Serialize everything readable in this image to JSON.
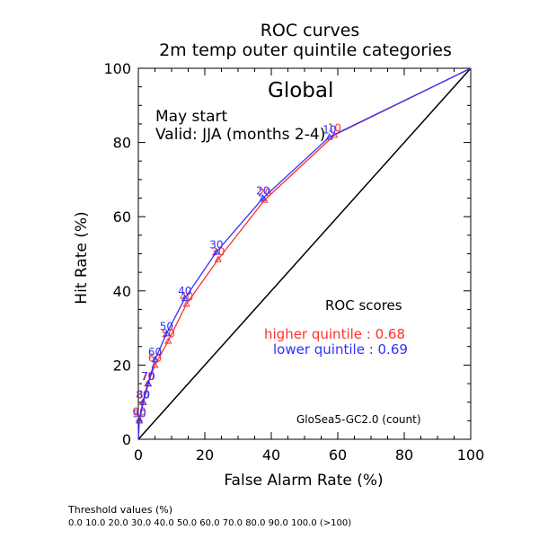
{
  "chart_data": {
    "type": "line",
    "title": "ROC curves",
    "subtitle": "2m temp outer quintile categories",
    "xlabel": "False Alarm Rate (%)",
    "ylabel": "Hit Rate (%)",
    "xlim": [
      0,
      100
    ],
    "ylim": [
      0,
      100
    ],
    "xticks": [
      "0",
      "20",
      "40",
      "60",
      "80",
      "100"
    ],
    "yticks": [
      "0",
      "20",
      "40",
      "60",
      "80",
      "100"
    ],
    "region": "Global",
    "start_text": "May start",
    "valid_text": "Valid: JJA (months 2-4)",
    "scores_heading": "ROC scores",
    "model_label": "GloSea5-GC2.0 (count)",
    "grid": false,
    "series": [
      {
        "name": "higher quintile",
        "score_text": "higher quintile : 0.68",
        "color": "#ff3030",
        "points": [
          {
            "label": "",
            "x": 0,
            "y": 0
          },
          {
            "label": "90",
            "x": 0.3,
            "y": 5.5
          },
          {
            "label": "80",
            "x": 1.3,
            "y": 10
          },
          {
            "label": "70",
            "x": 2.8,
            "y": 15
          },
          {
            "label": "60",
            "x": 5,
            "y": 20
          },
          {
            "label": "50",
            "x": 9,
            "y": 26.5
          },
          {
            "label": "40",
            "x": 14.5,
            "y": 36.5
          },
          {
            "label": "30",
            "x": 24,
            "y": 48.5
          },
          {
            "label": "20",
            "x": 38,
            "y": 64.5
          },
          {
            "label": "10",
            "x": 59,
            "y": 82
          },
          {
            "label": "",
            "x": 100,
            "y": 100
          }
        ]
      },
      {
        "name": "lower quintile",
        "score_text": "lower quintile : 0.69",
        "color": "#3030ff",
        "points": [
          {
            "label": "",
            "x": 0,
            "y": 0
          },
          {
            "label": "90",
            "x": 0.3,
            "y": 5
          },
          {
            "label": "80",
            "x": 1.5,
            "y": 10
          },
          {
            "label": "70",
            "x": 3,
            "y": 15
          },
          {
            "label": "60",
            "x": 5,
            "y": 21.5
          },
          {
            "label": "50",
            "x": 8.5,
            "y": 28.5
          },
          {
            "label": "40",
            "x": 14,
            "y": 38
          },
          {
            "label": "30",
            "x": 23.5,
            "y": 50.5
          },
          {
            "label": "20",
            "x": 37.5,
            "y": 65
          },
          {
            "label": "10",
            "x": 57.5,
            "y": 81.5
          },
          {
            "label": "",
            "x": 100,
            "y": 100
          }
        ]
      }
    ]
  },
  "footer": {
    "heading": "Threshold values (%)",
    "values": "0.0 10.0 20.0 30.0 40.0 50.0 60.0 70.0 80.0 90.0 100.0 (>100)"
  }
}
